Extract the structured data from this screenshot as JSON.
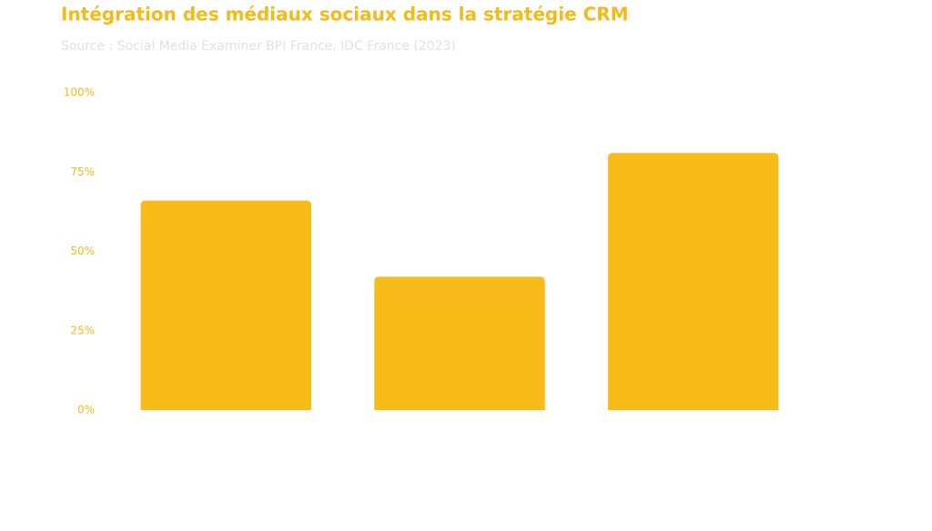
{
  "chart_data": {
    "type": "bar",
    "title": "Intégration des médiaux sociaux dans la stratégie CRM",
    "subtitle": "Source : Social Media Examiner BPI France, IDC France (2023)",
    "categories": [
      null,
      null,
      null
    ],
    "values": [
      66,
      42,
      81
    ],
    "color": "#f7bb1a",
    "ylim": [
      0,
      100
    ],
    "yticks": [
      {
        "value": 0,
        "label": "0%"
      },
      {
        "value": 25,
        "label": "25%"
      },
      {
        "value": 50,
        "label": "50%"
      },
      {
        "value": 75,
        "label": "75%"
      },
      {
        "value": 100,
        "label": "100%"
      }
    ],
    "grid": false
  }
}
